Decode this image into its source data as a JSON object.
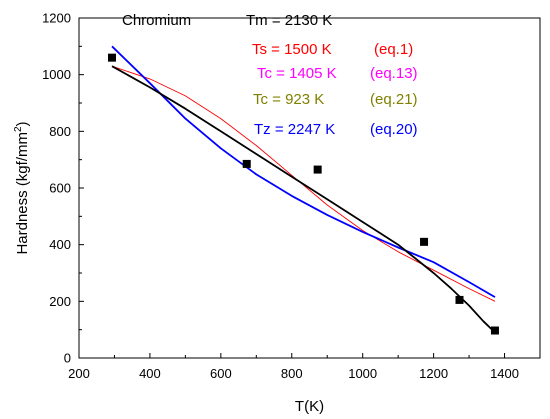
{
  "chart_data": {
    "type": "scatter",
    "xlabel": "T(K)",
    "ylabel": "Hardness (kgf/mm",
    "ylabel_sup": "2",
    "ylabel_close": ")",
    "xlim": [
      200,
      1500
    ],
    "ylim": [
      0,
      1200
    ],
    "x_ticks": [
      200,
      400,
      600,
      800,
      1000,
      1200,
      1400
    ],
    "y_ticks": [
      0,
      200,
      400,
      600,
      800,
      1000,
      1200
    ],
    "colors": {
      "black": "#000000",
      "red": "#ff0000",
      "magenta": "#ff00ff",
      "olive": "#808000",
      "blue": "#0000ff"
    },
    "points": [
      {
        "x": 293,
        "y": 1060
      },
      {
        "x": 673,
        "y": 685
      },
      {
        "x": 873,
        "y": 665
      },
      {
        "x": 1173,
        "y": 410
      },
      {
        "x": 1273,
        "y": 205
      },
      {
        "x": 1373,
        "y": 97
      }
    ],
    "curves": [
      {
        "color": "red",
        "x": [
          293,
          400,
          500,
          600,
          700,
          800,
          900,
          1000,
          1100,
          1200,
          1300,
          1373
        ],
        "y": [
          1030,
          985,
          925,
          845,
          750,
          645,
          540,
          450,
          375,
          310,
          245,
          200
        ]
      },
      {
        "color": "blue",
        "x": [
          293,
          400,
          500,
          600,
          700,
          800,
          900,
          1000,
          1100,
          1200,
          1300,
          1373
        ],
        "y": [
          1100,
          970,
          845,
          740,
          648,
          572,
          505,
          445,
          390,
          338,
          268,
          215
        ]
      },
      {
        "color": "black",
        "x": [
          293,
          400,
          500,
          600,
          700,
          800,
          900,
          1000,
          1100,
          1200,
          1250,
          1300,
          1340,
          1373
        ],
        "y": [
          1030,
          955,
          880,
          800,
          720,
          640,
          560,
          480,
          400,
          300,
          245,
          185,
          130,
          90
        ]
      }
    ],
    "annotations": [
      {
        "text": "Chromium",
        "color": "black"
      },
      {
        "text": "Tm = 2130 K",
        "color": "black"
      },
      {
        "text": "Ts = 1500 K",
        "color": "red"
      },
      {
        "text": "(eq.1)",
        "color": "red"
      },
      {
        "text": "Tc = 1405 K",
        "color": "magenta"
      },
      {
        "text": "(eq.13)",
        "color": "magenta"
      },
      {
        "text": "Tc = 923 K",
        "color": "olive"
      },
      {
        "text": "(eq.21)",
        "color": "olive"
      },
      {
        "text": "Tz = 2247 K",
        "color": "blue"
      },
      {
        "text": "(eq.20)",
        "color": "blue"
      }
    ]
  }
}
